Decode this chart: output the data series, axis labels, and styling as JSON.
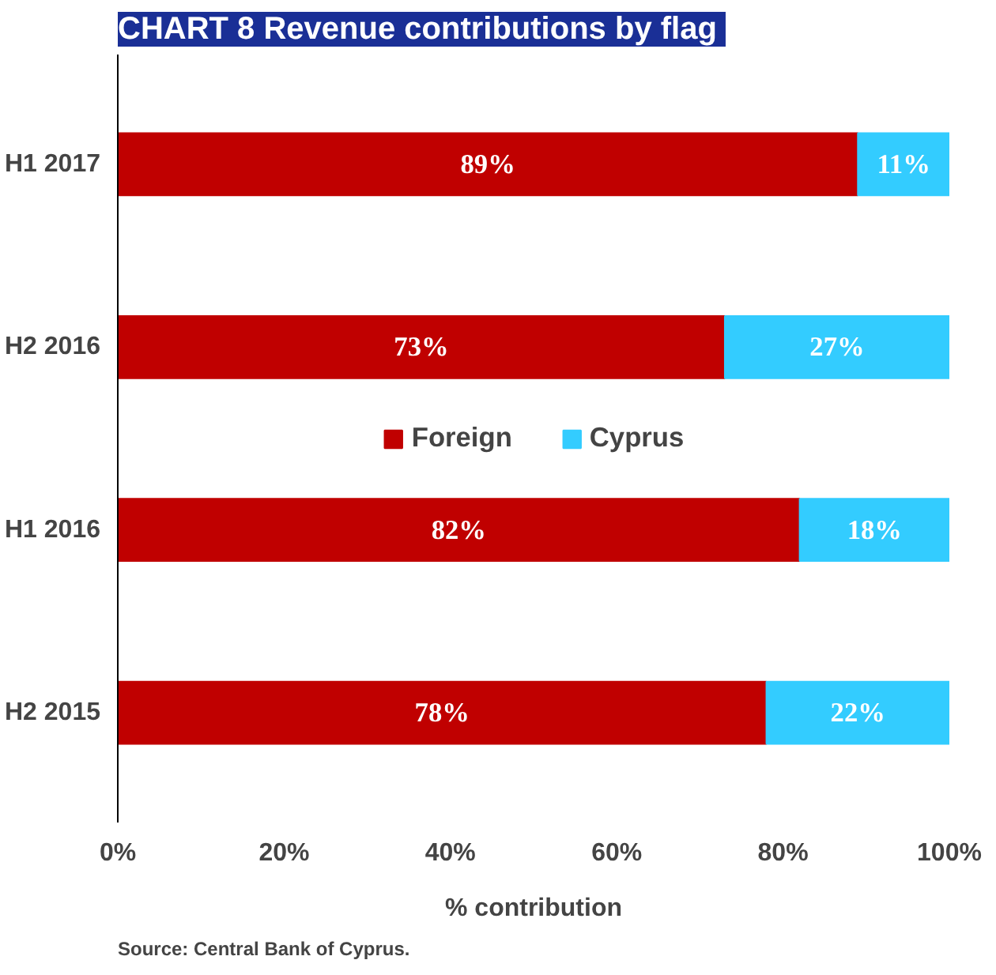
{
  "chart_data": {
    "type": "bar",
    "title": "CHART 8  Revenue contributions by flag",
    "xlabel": "% contribution",
    "orientation": "horizontal",
    "stacked": true,
    "categories": [
      "H1 2017",
      "H2 2016",
      "H1 2016",
      "H2 2015"
    ],
    "series": [
      {
        "name": "Foreign",
        "color": "#c00000",
        "values": [
          89,
          73,
          82,
          78
        ],
        "value_labels": [
          "89%",
          "73%",
          "82%",
          "78%"
        ]
      },
      {
        "name": "Cyprus",
        "color": "#33ccff",
        "values": [
          11,
          27,
          18,
          22
        ],
        "value_labels": [
          "11%",
          "27%",
          "18%",
          "22%"
        ]
      }
    ],
    "xlim": [
      0,
      100
    ],
    "xticks": [
      {
        "value": 0,
        "label": "0%"
      },
      {
        "value": 20,
        "label": "20%"
      },
      {
        "value": 40,
        "label": "40%"
      },
      {
        "value": 60,
        "label": "60%"
      },
      {
        "value": 80,
        "label": "80%"
      },
      {
        "value": 100,
        "label": "100%"
      }
    ],
    "grid": false,
    "legend": "center",
    "annotations": [
      "Source: Central Bank of Cyprus."
    ]
  }
}
